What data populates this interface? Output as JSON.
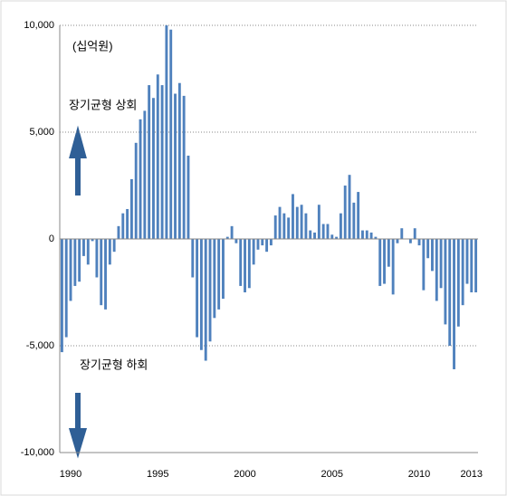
{
  "chart_data": {
    "type": "bar",
    "unit_label": "(십억원)",
    "annotations": [
      "장기균형 상회",
      "장기균형 하회"
    ],
    "categories": [
      null,
      null,
      "1990",
      null,
      null,
      null,
      null,
      null,
      null,
      null,
      null,
      null,
      null,
      null,
      null,
      null,
      null,
      null,
      null,
      null,
      null,
      null,
      "1995",
      null,
      null,
      null,
      null,
      null,
      null,
      null,
      null,
      null,
      null,
      null,
      null,
      null,
      null,
      null,
      null,
      null,
      null,
      null,
      "2000",
      null,
      null,
      null,
      null,
      null,
      null,
      null,
      null,
      null,
      null,
      null,
      null,
      null,
      null,
      null,
      null,
      null,
      null,
      null,
      "2005",
      null,
      null,
      null,
      null,
      null,
      null,
      null,
      null,
      null,
      null,
      null,
      null,
      null,
      null,
      null,
      null,
      null,
      null,
      null,
      "2010",
      null,
      null,
      null,
      null,
      null,
      null,
      null,
      null,
      null,
      null,
      null,
      "2013",
      null
    ],
    "values": [
      -5300,
      -4600,
      -2900,
      -2200,
      -2000,
      -800,
      -1200,
      -100,
      -1800,
      -3100,
      -3300,
      -1200,
      -600,
      600,
      1200,
      1400,
      2800,
      4500,
      5600,
      6000,
      7200,
      6600,
      7700,
      7200,
      10000,
      9800,
      6800,
      7300,
      6700,
      3900,
      -1800,
      -4600,
      -5200,
      -5700,
      -4800,
      -3700,
      -3300,
      -2800,
      100,
      600,
      -200,
      -2200,
      -2500,
      -2300,
      -1200,
      -500,
      -300,
      -600,
      -300,
      1100,
      1500,
      1200,
      1000,
      2100,
      1500,
      1600,
      1200,
      400,
      300,
      1600,
      700,
      700,
      200,
      100,
      1200,
      2500,
      3000,
      1700,
      2200,
      400,
      400,
      300,
      100,
      -2200,
      -2100,
      -1300,
      -2600,
      -200,
      500,
      0,
      -200,
      500,
      -300,
      -2400,
      -900,
      -1500,
      -2900,
      -2300,
      -4000,
      -5000,
      -6100,
      -4100,
      -3100,
      -2100,
      -2500,
      -2500
    ],
    "color": "#4f81bd",
    "ylim": [
      -10000,
      10000
    ],
    "yticks": [
      {
        "value": -10000,
        "label": "-10,000"
      },
      {
        "value": -5000,
        "label": "-5,000"
      },
      0,
      {
        "value": 5000,
        "label": "5,000"
      },
      {
        "value": 10000,
        "label": "10,000"
      }
    ],
    "grid": true
  }
}
